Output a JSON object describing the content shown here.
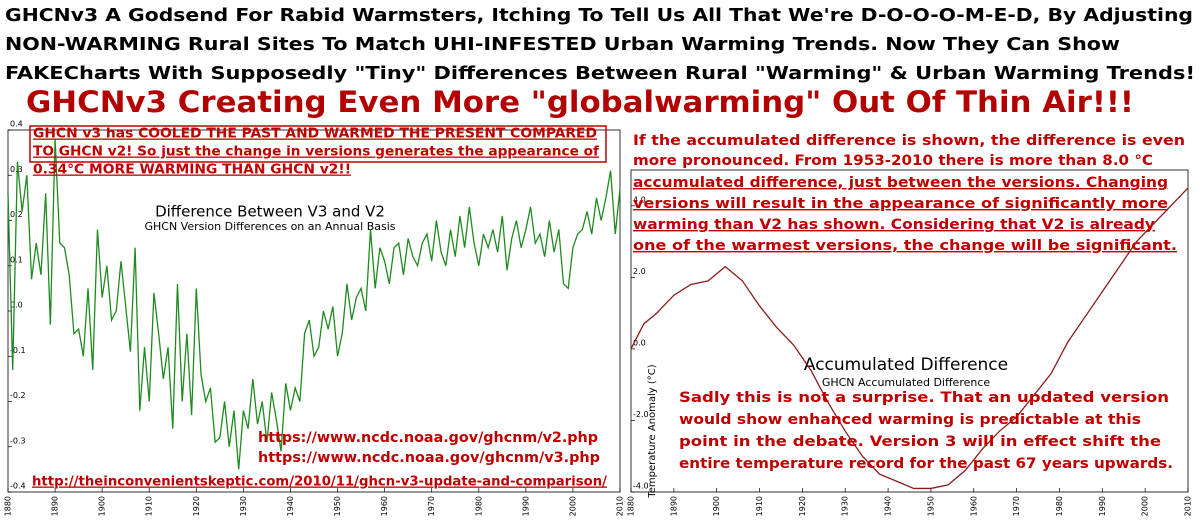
{
  "header": {
    "lines": [
      "GHCNv3 A Godsend For Rabid Warmsters, Itching To Tell Us All That We're D-O-O-O-M-E-D, By Adjusting",
      "NON-WARMING Rural Sites To Match UHI-INFESTED Urban Warming Trends. Now They Can Show",
      "FAKECharts With Supposedly \"Tiny\" Differences Between Rural \"Warming\" & Urban Warming Trends!"
    ],
    "title": "GHCNv3 Creating Even More \"globalwarming\" Out Of Thin Air!!!"
  },
  "annotations": {
    "left_box": [
      "GHCN v3 has COOLED THE PAST AND WARMED THE PRESENT COMPARED",
      "TO GHCN v2!  So just the change in versions generates the appearance of",
      "0.34°C MORE WARMING THAN GHCN v2!!"
    ],
    "urls": [
      "https://www.ncdc.noaa.gov/ghcnm/v2.php",
      "https://www.ncdc.noaa.gov/ghcnm/v3.php",
      "http://theinconvenientskeptic.com/2010/11/ghcn-v3-update-and-comparison/"
    ],
    "right_top": [
      "If the accumulated difference is shown, the difference is even",
      "more pronounced.  From 1953-2010 there is more than 8.0 °C",
      "accumulated difference, just between the versions.  Changing",
      "versions will result in the appearance of significantly more",
      "warming than V2 has shown.  Considering that V2 is already",
      "one of the warmest versions, the change will be significant."
    ],
    "right_bottom": [
      "Sadly this is not a surprise.  That an updated version",
      "would show enhanced warming is predictable at this",
      "point in the debate.  Version 3 will in effect shift the",
      "entire temperature record for the past 67 years upwards."
    ]
  },
  "chart_data": [
    {
      "type": "line",
      "title": "Difference Between V3 and V2",
      "subtitle": "GHCN Version Differences on an Annual Basis",
      "x": [
        1880,
        1881,
        1882,
        1883,
        1884,
        1885,
        1886,
        1887,
        1888,
        1889,
        1890,
        1891,
        1892,
        1893,
        1894,
        1895,
        1896,
        1897,
        1898,
        1899,
        1900,
        1901,
        1902,
        1903,
        1904,
        1905,
        1906,
        1907,
        1908,
        1909,
        1910,
        1911,
        1912,
        1913,
        1914,
        1915,
        1916,
        1917,
        1918,
        1919,
        1920,
        1921,
        1922,
        1923,
        1924,
        1925,
        1926,
        1927,
        1928,
        1929,
        1930,
        1931,
        1932,
        1933,
        1934,
        1935,
        1936,
        1937,
        1938,
        1939,
        1940,
        1941,
        1942,
        1943,
        1944,
        1945,
        1946,
        1947,
        1948,
        1949,
        1950,
        1951,
        1952,
        1953,
        1954,
        1955,
        1956,
        1957,
        1958,
        1959,
        1960,
        1961,
        1962,
        1963,
        1964,
        1965,
        1966,
        1967,
        1968,
        1969,
        1970,
        1971,
        1972,
        1973,
        1974,
        1975,
        1976,
        1977,
        1978,
        1979,
        1980,
        1981,
        1982,
        1983,
        1984,
        1985,
        1986,
        1987,
        1988,
        1989,
        1990,
        1991,
        1992,
        1993,
        1994,
        1995,
        1996,
        1997,
        1998,
        1999,
        2000,
        2001,
        2002,
        2003,
        2004,
        2005,
        2006,
        2007,
        2008,
        2009,
        2010
      ],
      "series": [
        {
          "color": "#1f8a1f",
          "values": [
            0.26,
            -0.13,
            0.33,
            0.22,
            0.3,
            0.07,
            0.15,
            0.08,
            0.26,
            -0.03,
            0.38,
            0.15,
            0.14,
            0.08,
            -0.05,
            -0.04,
            -0.1,
            0.05,
            -0.13,
            0.18,
            0.03,
            0.1,
            -0.02,
            0.0,
            0.11,
            0.01,
            -0.09,
            0.14,
            -0.22,
            -0.08,
            -0.2,
            0.04,
            -0.05,
            -0.15,
            -0.08,
            -0.26,
            0.06,
            -0.2,
            -0.05,
            -0.23,
            0.05,
            -0.14,
            -0.2,
            -0.17,
            -0.29,
            -0.28,
            -0.2,
            -0.3,
            -0.22,
            -0.35,
            -0.22,
            -0.26,
            -0.15,
            -0.25,
            -0.2,
            -0.29,
            -0.18,
            -0.24,
            -0.31,
            -0.16,
            -0.22,
            -0.17,
            -0.2,
            -0.05,
            -0.02,
            -0.1,
            -0.08,
            0.0,
            -0.04,
            0.01,
            -0.1,
            -0.05,
            0.06,
            -0.02,
            0.03,
            0.05,
            0.0,
            0.18,
            0.05,
            0.14,
            0.11,
            0.06,
            0.14,
            0.15,
            0.08,
            0.16,
            0.12,
            0.1,
            0.15,
            0.17,
            0.11,
            0.2,
            0.13,
            0.1,
            0.18,
            0.12,
            0.21,
            0.14,
            0.23,
            0.15,
            0.1,
            0.17,
            0.14,
            0.18,
            0.13,
            0.21,
            0.09,
            0.16,
            0.2,
            0.14,
            0.18,
            0.23,
            0.15,
            0.17,
            0.12,
            0.2,
            0.13,
            0.18,
            0.06,
            0.05,
            0.14,
            0.17,
            0.18,
            0.22,
            0.17,
            0.25,
            0.2,
            0.25,
            0.31,
            0.17,
            0.27
          ]
        }
      ],
      "xlim": [
        1880,
        2010
      ],
      "xticks": [
        1880,
        1890,
        1900,
        1910,
        1920,
        1930,
        1940,
        1950,
        1960,
        1970,
        1980,
        1990,
        2000,
        2010
      ],
      "ylim": [
        -0.4,
        0.4
      ],
      "yticks": [
        -0.4,
        -0.3,
        -0.2,
        -0.1,
        {
          "value": 0,
          "label": "0.0"
        },
        0.1,
        0.2,
        0.3,
        0.4
      ]
    },
    {
      "type": "line",
      "title": "Accumulated Difference",
      "subtitle": "GHCN Accumulated Difference",
      "y_label": "Temperature Anomaly (°C)",
      "x": [
        1880,
        1883,
        1886,
        1890,
        1894,
        1898,
        1902,
        1906,
        1910,
        1914,
        1918,
        1922,
        1926,
        1930,
        1934,
        1938,
        1942,
        1946,
        1950,
        1954,
        1958,
        1962,
        1966,
        1970,
        1974,
        1978,
        1982,
        1986,
        1990,
        1994,
        1998,
        2002,
        2006,
        2010
      ],
      "series": [
        {
          "color": "#8b1c1c",
          "values": [
            0.0,
            0.7,
            1.0,
            1.5,
            1.8,
            1.9,
            2.3,
            1.9,
            1.2,
            0.6,
            0.1,
            -0.6,
            -1.5,
            -2.3,
            -3.0,
            -3.5,
            -3.7,
            -3.9,
            -3.9,
            -3.8,
            -3.4,
            -2.8,
            -2.3,
            -1.9,
            -1.3,
            -0.7,
            0.2,
            0.9,
            1.6,
            2.3,
            3.0,
            3.5,
            4.0,
            4.5
          ]
        }
      ],
      "xlim": [
        1880,
        2010
      ],
      "xticks": [
        1880,
        1890,
        1900,
        1910,
        1920,
        1930,
        1940,
        1950,
        1960,
        1970,
        1980,
        1990,
        2000,
        2010
      ],
      "ylim": [
        -4,
        5
      ],
      "yticks": [
        {
          "value": -4,
          "label": "-4.0"
        },
        {
          "value": -2,
          "label": "-2.0"
        },
        {
          "value": 0,
          "label": "0.0"
        },
        {
          "value": 2,
          "label": "2.0"
        },
        {
          "value": 4,
          "label": "4.0"
        }
      ]
    }
  ]
}
